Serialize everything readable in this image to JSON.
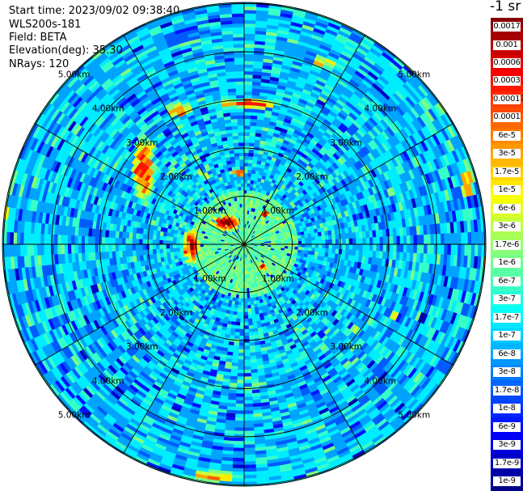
{
  "header": {
    "start_time": "Start time: 2023/09/02 09:38:40",
    "instrument": "WLS200s-181",
    "field": "Field: BETA",
    "elevation": "Elevation(deg): 35.30",
    "nrays": "NRays: 120"
  },
  "colorbar": {
    "units": "-1 sr",
    "labels": [
      "0.0017",
      "0.001",
      "0.0006",
      "0.0003",
      "0.00017",
      "0.0001",
      "6e-5",
      "3e-5",
      "1.7e-5",
      "1e-5",
      "6e-6",
      "3e-6",
      "1.7e-6",
      "1e-6",
      "6e-7",
      "3e-7",
      "1.7e-7",
      "1e-7",
      "6e-8",
      "3e-8",
      "1.7e-8",
      "1e-8",
      "6e-9",
      "3e-9",
      "1.7e-9",
      "1e-9"
    ]
  },
  "ppi": {
    "range_ring_labels": [
      "1.00km",
      "2.00km",
      "3.00km",
      "4.00km",
      "5.00km"
    ],
    "num_rays": 120,
    "radial_spokes": 12
  }
}
